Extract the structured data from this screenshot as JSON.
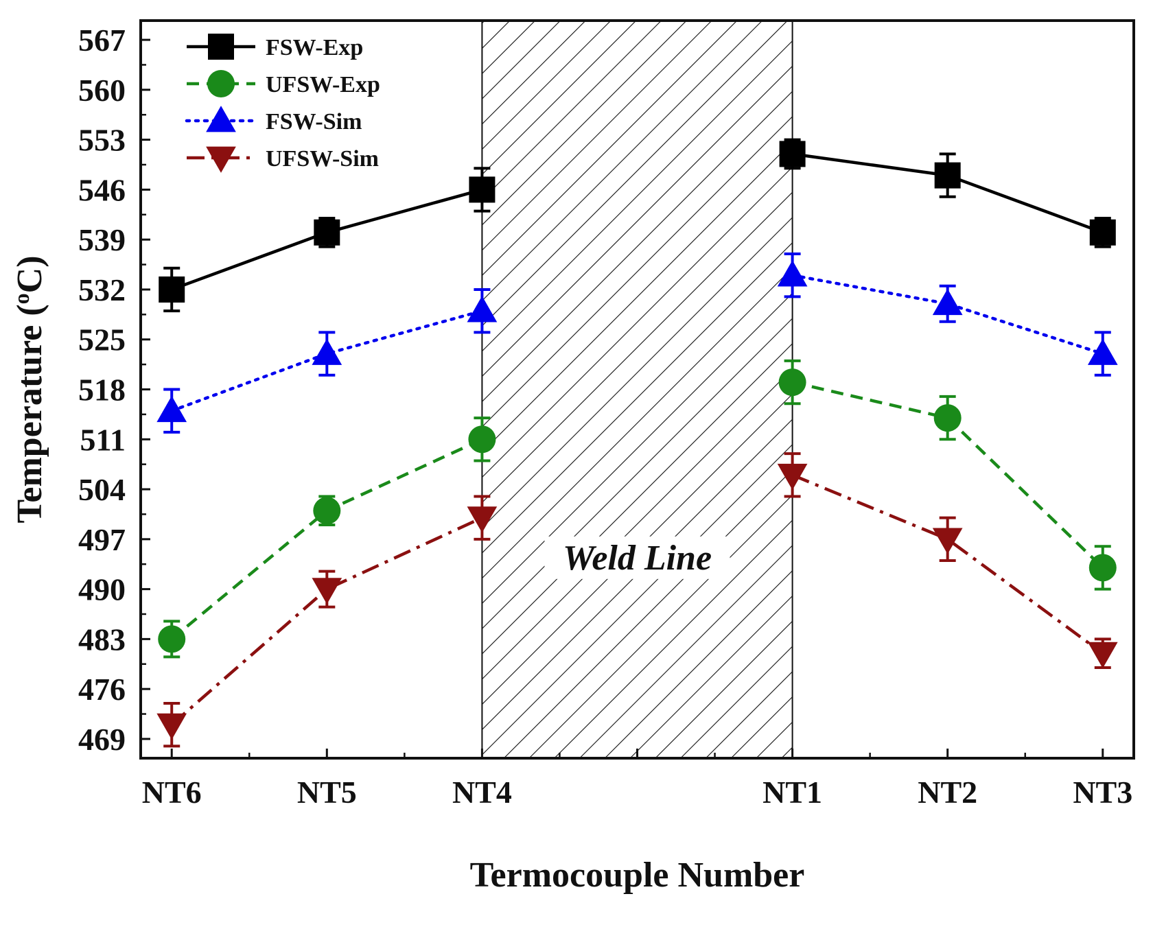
{
  "chart_data": {
    "type": "line",
    "title": "",
    "xlabel": "Termocouple Number",
    "ylabel_main": "Temperature (",
    "ylabel_sup": "o",
    "ylabel_tail": "C)",
    "categories": [
      "NT6",
      "NT5",
      "NT4",
      "NT1",
      "NT2",
      "NT3"
    ],
    "category_positions": [
      0,
      1,
      2,
      4,
      5,
      6
    ],
    "xlim": [
      -0.2,
      6.2
    ],
    "ylim": [
      466.3,
      569.7
    ],
    "yticks": [
      469,
      476,
      483,
      490,
      497,
      504,
      511,
      518,
      525,
      532,
      539,
      546,
      553,
      560,
      567
    ],
    "shaded_region": {
      "from": 2,
      "to": 4,
      "label": "Weld Line",
      "pattern": "diagonal-hatch"
    },
    "legend_position": "top-left",
    "series": [
      {
        "name": "FSW-Exp",
        "color": "#000000",
        "marker": "square",
        "dash": "solid",
        "values": [
          532,
          540,
          546,
          551,
          548,
          540
        ],
        "errors": [
          3,
          2,
          3,
          2,
          3,
          2
        ]
      },
      {
        "name": "UFSW-Exp",
        "color": "#1a8a1a",
        "marker": "circle",
        "dash": "dashed",
        "values": [
          483,
          501,
          511,
          519,
          514,
          493
        ],
        "errors": [
          2.5,
          2,
          3,
          3,
          3,
          3
        ]
      },
      {
        "name": "FSW-Sim",
        "color": "#0000ee",
        "marker": "triangle-up",
        "dash": "dotted",
        "values": [
          515,
          523,
          529,
          534,
          530,
          523
        ],
        "errors": [
          3,
          3,
          3,
          3,
          2.5,
          3
        ]
      },
      {
        "name": "UFSW-Sim",
        "color": "#8b1010",
        "marker": "triangle-down",
        "dash": "dashdot",
        "values": [
          471,
          490,
          500,
          506,
          497,
          481
        ],
        "errors": [
          3,
          2.5,
          3,
          3,
          3,
          2
        ]
      }
    ]
  }
}
